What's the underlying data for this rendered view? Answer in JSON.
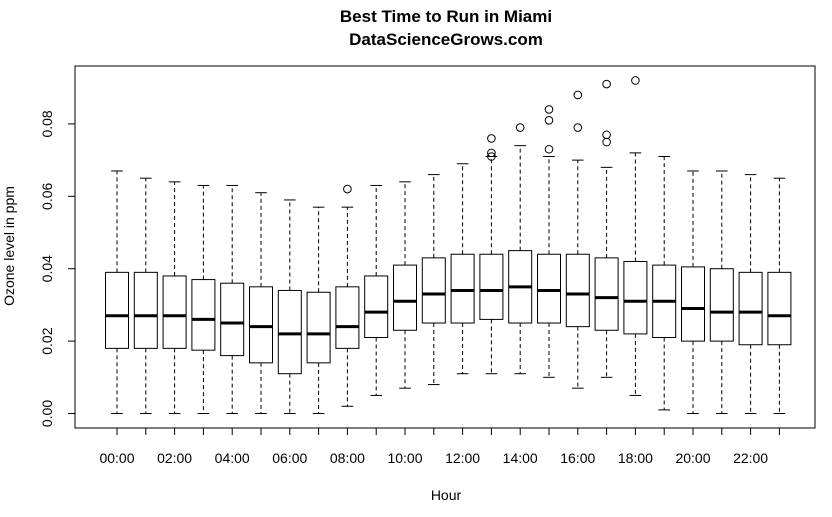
{
  "chart_data": {
    "type": "boxplot",
    "title": "Best Time to Run in Miami",
    "subtitle": "DataScienceGrows.com",
    "xlabel": "Hour",
    "ylabel": "Ozone level in ppm",
    "ylim": [
      -0.004,
      0.096
    ],
    "yticks": [
      0.0,
      0.02,
      0.04,
      0.06,
      0.08
    ],
    "ytick_labels": [
      "0.00",
      "0.02",
      "0.04",
      "0.06",
      "0.08"
    ],
    "categories": [
      "00:00",
      "01:00",
      "02:00",
      "03:00",
      "04:00",
      "05:00",
      "06:00",
      "07:00",
      "08:00",
      "09:00",
      "10:00",
      "11:00",
      "12:00",
      "13:00",
      "14:00",
      "15:00",
      "16:00",
      "17:00",
      "18:00",
      "19:00",
      "20:00",
      "21:00",
      "22:00",
      "23:00"
    ],
    "xtick_labels": [
      "00:00",
      "02:00",
      "04:00",
      "06:00",
      "08:00",
      "10:00",
      "12:00",
      "14:00",
      "16:00",
      "18:00",
      "20:00",
      "22:00"
    ],
    "grid": false,
    "boxes": [
      {
        "min": 0.0,
        "q1": 0.018,
        "median": 0.027,
        "q3": 0.039,
        "max": 0.067,
        "outliers": []
      },
      {
        "min": 0.0,
        "q1": 0.018,
        "median": 0.027,
        "q3": 0.039,
        "max": 0.065,
        "outliers": []
      },
      {
        "min": 0.0,
        "q1": 0.018,
        "median": 0.027,
        "q3": 0.038,
        "max": 0.064,
        "outliers": []
      },
      {
        "min": 0.0,
        "q1": 0.0175,
        "median": 0.026,
        "q3": 0.037,
        "max": 0.063,
        "outliers": []
      },
      {
        "min": 0.0,
        "q1": 0.016,
        "median": 0.025,
        "q3": 0.036,
        "max": 0.063,
        "outliers": []
      },
      {
        "min": 0.0,
        "q1": 0.014,
        "median": 0.024,
        "q3": 0.035,
        "max": 0.061,
        "outliers": []
      },
      {
        "min": 0.0,
        "q1": 0.011,
        "median": 0.022,
        "q3": 0.034,
        "max": 0.059,
        "outliers": []
      },
      {
        "min": 0.0,
        "q1": 0.014,
        "median": 0.022,
        "q3": 0.0335,
        "max": 0.057,
        "outliers": []
      },
      {
        "min": 0.002,
        "q1": 0.018,
        "median": 0.024,
        "q3": 0.035,
        "max": 0.057,
        "outliers": [
          0.062
        ]
      },
      {
        "min": 0.005,
        "q1": 0.021,
        "median": 0.028,
        "q3": 0.038,
        "max": 0.063,
        "outliers": []
      },
      {
        "min": 0.007,
        "q1": 0.023,
        "median": 0.031,
        "q3": 0.041,
        "max": 0.064,
        "outliers": []
      },
      {
        "min": 0.008,
        "q1": 0.025,
        "median": 0.033,
        "q3": 0.043,
        "max": 0.066,
        "outliers": []
      },
      {
        "min": 0.011,
        "q1": 0.025,
        "median": 0.034,
        "q3": 0.044,
        "max": 0.069,
        "outliers": []
      },
      {
        "min": 0.011,
        "q1": 0.026,
        "median": 0.034,
        "q3": 0.044,
        "max": 0.071,
        "outliers": [
          0.076,
          0.072,
          0.071
        ]
      },
      {
        "min": 0.011,
        "q1": 0.025,
        "median": 0.035,
        "q3": 0.045,
        "max": 0.074,
        "outliers": [
          0.079
        ]
      },
      {
        "min": 0.01,
        "q1": 0.025,
        "median": 0.034,
        "q3": 0.044,
        "max": 0.071,
        "outliers": [
          0.084,
          0.081,
          0.073
        ]
      },
      {
        "min": 0.007,
        "q1": 0.024,
        "median": 0.033,
        "q3": 0.044,
        "max": 0.07,
        "outliers": [
          0.088,
          0.079
        ]
      },
      {
        "min": 0.01,
        "q1": 0.023,
        "median": 0.032,
        "q3": 0.043,
        "max": 0.068,
        "outliers": [
          0.091,
          0.077,
          0.075
        ]
      },
      {
        "min": 0.005,
        "q1": 0.022,
        "median": 0.031,
        "q3": 0.042,
        "max": 0.072,
        "outliers": [
          0.092
        ]
      },
      {
        "min": 0.001,
        "q1": 0.021,
        "median": 0.031,
        "q3": 0.041,
        "max": 0.071,
        "outliers": []
      },
      {
        "min": 0.0,
        "q1": 0.02,
        "median": 0.029,
        "q3": 0.0405,
        "max": 0.067,
        "outliers": []
      },
      {
        "min": 0.0,
        "q1": 0.02,
        "median": 0.028,
        "q3": 0.04,
        "max": 0.067,
        "outliers": []
      },
      {
        "min": 0.0,
        "q1": 0.019,
        "median": 0.028,
        "q3": 0.039,
        "max": 0.066,
        "outliers": []
      },
      {
        "min": 0.0,
        "q1": 0.019,
        "median": 0.027,
        "q3": 0.039,
        "max": 0.065,
        "outliers": []
      }
    ]
  }
}
